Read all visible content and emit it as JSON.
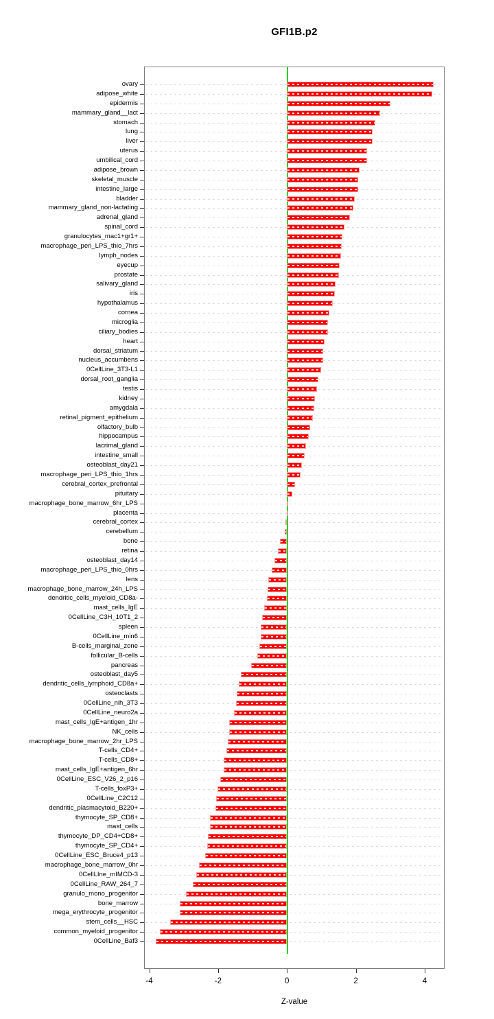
{
  "title": "GFI1B.p2",
  "chart_data": {
    "type": "bar",
    "orientation": "horizontal",
    "title": "GFI1B.p2",
    "xlabel": "Z-value",
    "ylabel": "",
    "xlim": [
      -4.15,
      4.58
    ],
    "x_ticks": [
      "-4",
      "-2",
      "0",
      "2",
      "4"
    ],
    "x_tick_values": [
      -4,
      -2,
      0,
      2,
      4
    ],
    "grid": "dashed-horizontal",
    "legend": "none",
    "bar_color": "#f40000",
    "zero_line_color": "#00d400",
    "categories": [
      "ovary",
      "adipose_white",
      "epidermis",
      "mammary_gland__lact",
      "stomach",
      "lung",
      "liver",
      "uterus",
      "umbilical_cord",
      "adipose_brown",
      "skeletal_muscle",
      "intestine_large",
      "bladder",
      "mammary_gland_non-lactating",
      "adrenal_gland",
      "spinal_cord",
      "granulocytes_mac1+gr1+",
      "macrophage_peri_LPS_thio_7hrs",
      "lymph_nodes",
      "eyecup",
      "prostate",
      "salivary_gland",
      "iris",
      "hypothalamus",
      "cornea",
      "microglia",
      "ciliary_bodies",
      "heart",
      "dorsal_striatum",
      "nucleus_accumbens",
      "0CellLine_3T3-L1",
      "dorsal_root_ganglia",
      "testis",
      "kidney",
      "amygdala",
      "retinal_pigment_epithelium",
      "olfactory_bulb",
      "hippocampus",
      "lacrimal_gland",
      "intestine_small",
      "osteoblast_day21",
      "macrophage_peri_LPS_thio_1hrs",
      "cerebral_cortex_prefrontal",
      "pituitary",
      "macrophage_bone_marrow_6hr_LPS",
      "placenta",
      "cerebral_cortex",
      "cerebellum",
      "bone",
      "retina",
      "osteoblast_day14",
      "macrophage_peri_LPS_thio_0hrs",
      "lens",
      "macrophage_bone_marrow_24h_LPS",
      "dendritic_cells_myeloid_CD8a-",
      "mast_cells_IgE",
      "0CellLine_C3H_10T1_2",
      "spleen",
      "0CellLine_min6",
      "B-cells_marginal_zone",
      "follicular_B-cells",
      "pancreas",
      "osteoblast_day5",
      "dendritic_cells_lymphoid_CD8a+",
      "osteoclasts",
      "0CellLine_nih_3T3",
      "0CellLine_neuro2a",
      "mast_cells_IgE+antigen_1hr",
      "NK_cells",
      "macrophage_bone_marrow_2hr_LPS",
      "T-cells_CD4+",
      "T-cells_CD8+",
      "mast_cells_IgE+antigen_6hr",
      "0CellLine_ESC_V26_2_p16",
      "T-cells_foxP3+",
      "0CellLine_C2C12",
      "dendritic_plasmacytoid_B220+",
      "thymocyte_SP_CD8+",
      "mast_cells",
      "thymocyte_DP_CD4+CD8+",
      "thymocyte_SP_CD4+",
      "0CellLine_ESC_Bruce4_p13",
      "macrophage_bone_marrow_0hr",
      "0CellLIne_mIMCD-3",
      "0CellLine_RAW_264_7",
      "granulo_mono_progenitor",
      "bone_marrow",
      "mega_erythrocyte_progenitor",
      "stem_cells__HSC",
      "common_myeloid_progenitor",
      "0CellLine_Baf3"
    ],
    "values": [
      4.26,
      4.22,
      3.01,
      2.71,
      2.56,
      2.49,
      2.49,
      2.33,
      2.33,
      2.11,
      2.07,
      2.07,
      1.96,
      1.92,
      1.83,
      1.68,
      1.61,
      1.59,
      1.57,
      1.53,
      1.51,
      1.41,
      1.39,
      1.34,
      1.24,
      1.2,
      1.19,
      1.09,
      1.06,
      1.05,
      1.0,
      0.92,
      0.88,
      0.82,
      0.79,
      0.75,
      0.68,
      0.64,
      0.56,
      0.52,
      0.44,
      0.39,
      0.24,
      0.16,
      0.03,
      0.01,
      -0.04,
      -0.06,
      -0.21,
      -0.26,
      -0.36,
      -0.45,
      -0.54,
      -0.57,
      -0.58,
      -0.66,
      -0.72,
      -0.76,
      -0.76,
      -0.8,
      -0.86,
      -1.04,
      -1.33,
      -1.4,
      -1.46,
      -1.47,
      -1.54,
      -1.67,
      -1.67,
      -1.71,
      -1.75,
      -1.83,
      -1.83,
      -1.94,
      -2.02,
      -2.05,
      -2.07,
      -2.23,
      -2.24,
      -2.29,
      -2.32,
      -2.37,
      -2.56,
      -2.64,
      -2.74,
      -2.94,
      -3.12,
      -3.11,
      -3.4,
      -3.69,
      -3.82
    ]
  }
}
